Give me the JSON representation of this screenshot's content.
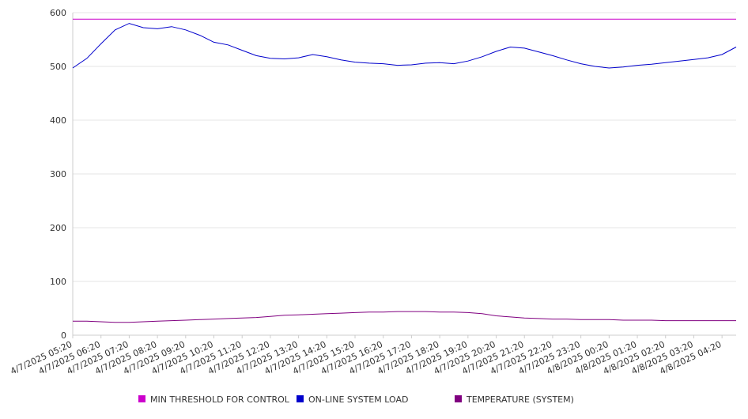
{
  "chart_data": {
    "type": "line",
    "ylim": [
      0,
      600
    ],
    "y_ticks": [
      0,
      100,
      200,
      300,
      400,
      500,
      600
    ],
    "grid": true,
    "legend_position": "bottom",
    "x_tick_labels": [
      "4/7/2025 05:20",
      "4/7/2025 06:20",
      "4/7/2025 07:20",
      "4/7/2025 08:20",
      "4/7/2025 09:20",
      "4/7/2025 10:20",
      "4/7/2025 11:20",
      "4/7/2025 12:20",
      "4/7/2025 13:20",
      "4/7/2025 14:20",
      "4/7/2025 15:20",
      "4/7/2025 16:20",
      "4/7/2025 17:20",
      "4/7/2025 18:20",
      "4/7/2025 19:20",
      "4/7/2025 20:20",
      "4/7/2025 21:20",
      "4/7/2025 22:20",
      "4/7/2025 23:20",
      "4/8/2025 00:20",
      "4/8/2025 01:20",
      "4/8/2025 02:20",
      "4/8/2025 03:20",
      "4/8/2025 04:20"
    ],
    "x": [
      "4/7/2025 05:20",
      "4/7/2025 05:50",
      "4/7/2025 06:20",
      "4/7/2025 06:50",
      "4/7/2025 07:20",
      "4/7/2025 07:50",
      "4/7/2025 08:20",
      "4/7/2025 08:50",
      "4/7/2025 09:20",
      "4/7/2025 09:50",
      "4/7/2025 10:20",
      "4/7/2025 10:50",
      "4/7/2025 11:20",
      "4/7/2025 11:50",
      "4/7/2025 12:20",
      "4/7/2025 12:50",
      "4/7/2025 13:20",
      "4/7/2025 13:50",
      "4/7/2025 14:20",
      "4/7/2025 14:50",
      "4/7/2025 15:20",
      "4/7/2025 15:50",
      "4/7/2025 16:20",
      "4/7/2025 16:50",
      "4/7/2025 17:20",
      "4/7/2025 17:50",
      "4/7/2025 18:20",
      "4/7/2025 18:50",
      "4/7/2025 19:20",
      "4/7/2025 19:50",
      "4/7/2025 20:20",
      "4/7/2025 20:50",
      "4/7/2025 21:20",
      "4/7/2025 21:50",
      "4/7/2025 22:20",
      "4/7/2025 22:50",
      "4/7/2025 23:20",
      "4/7/2025 23:50",
      "4/8/2025 00:20",
      "4/8/2025 00:50",
      "4/8/2025 01:20",
      "4/8/2025 01:50",
      "4/8/2025 02:20",
      "4/8/2025 02:50",
      "4/8/2025 03:20",
      "4/8/2025 03:50",
      "4/8/2025 04:20",
      "4/8/2025 04:50"
    ],
    "series": [
      {
        "name": "MIN THRESHOLD FOR CONTROL",
        "color": "#cc00cc",
        "values": [
          588,
          588,
          588,
          588,
          588,
          588,
          588,
          588,
          588,
          588,
          588,
          588,
          588,
          588,
          588,
          588,
          588,
          588,
          588,
          588,
          588,
          588,
          588,
          588,
          588,
          588,
          588,
          588,
          588,
          588,
          588,
          588,
          588,
          588,
          588,
          588,
          588,
          588,
          588,
          588,
          588,
          588,
          588,
          588,
          588,
          588,
          588,
          588
        ]
      },
      {
        "name": "ON-LINE SYSTEM LOAD",
        "color": "#0000cc",
        "values": [
          497,
          515,
          542,
          568,
          580,
          572,
          570,
          574,
          568,
          558,
          545,
          540,
          530,
          520,
          515,
          514,
          516,
          522,
          518,
          512,
          508,
          506,
          505,
          502,
          503,
          506,
          507,
          505,
          510,
          518,
          528,
          536,
          534,
          527,
          520,
          512,
          505,
          500,
          497,
          499,
          502,
          504,
          507,
          510,
          513,
          516,
          522,
          536
        ]
      },
      {
        "name": "TEMPERATURE (SYSTEM)",
        "color": "#800080",
        "values": [
          26,
          26,
          25,
          24,
          24,
          25,
          26,
          27,
          28,
          29,
          30,
          31,
          32,
          33,
          35,
          37,
          38,
          39,
          40,
          41,
          42,
          43,
          43,
          44,
          44,
          44,
          43,
          43,
          42,
          40,
          36,
          34,
          32,
          31,
          30,
          30,
          29,
          29,
          29,
          28,
          28,
          28,
          27,
          27,
          27,
          27,
          27,
          27
        ]
      }
    ]
  }
}
